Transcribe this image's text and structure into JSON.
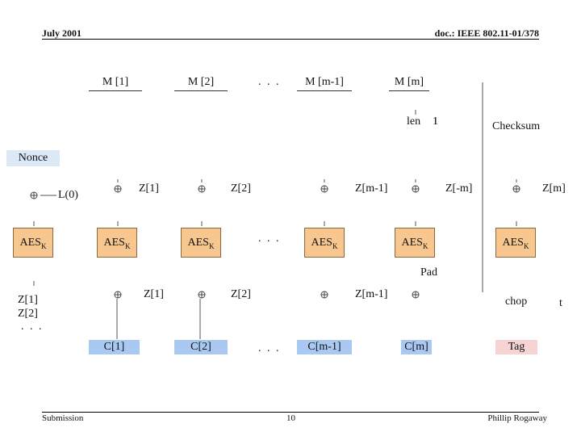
{
  "header": {
    "date": "July 2001",
    "doc": "doc.: IEEE 802.11-01/378"
  },
  "footer": {
    "submission": "Submission",
    "page": "10",
    "author": "Phillip Rogaway"
  },
  "diagram": {
    "messages": [
      "M [1]",
      "M [2]",
      "M [m-1]",
      "M [m]"
    ],
    "ellipsis": ". . .",
    "len_label": "len",
    "len_suffix": "1",
    "checksum": "Checksum",
    "nonce": "Nonce",
    "l0": "L(0)",
    "z_top": [
      "Z[1]",
      "Z[2]",
      "Z[m-1]",
      "Z[-m]",
      "Z[m]"
    ],
    "aes_label": "AES",
    "aes_sub": "K",
    "pad": "Pad",
    "z_left": [
      "Z[1]",
      "Z[2]",
      ". . ."
    ],
    "z_bottom": [
      "Z[1]",
      "Z[2]",
      "Z[m-1]"
    ],
    "chop": "chop",
    "t": "t",
    "ciphertexts": [
      "C[1]",
      "C[2]",
      "C[m-1]",
      "C[m]"
    ],
    "tag": "Tag"
  }
}
